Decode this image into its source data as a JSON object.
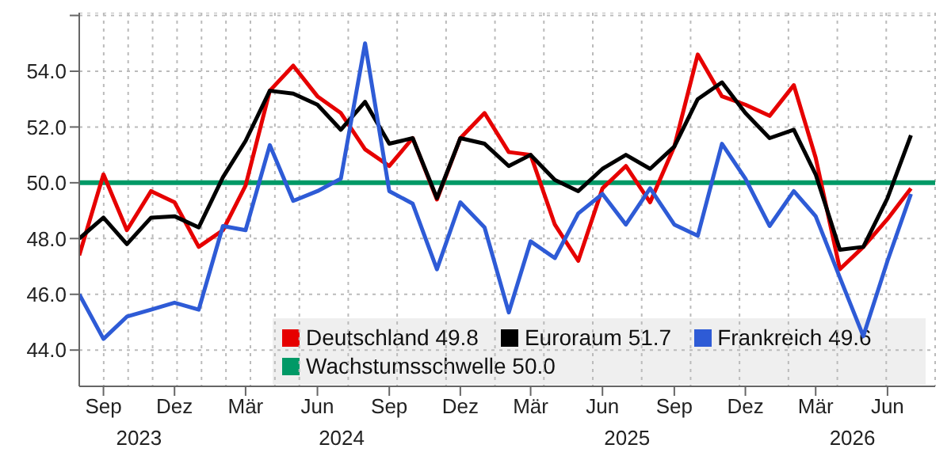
{
  "chart_data": {
    "type": "line",
    "x": [
      "2023-08",
      "2023-09",
      "2023-10",
      "2023-11",
      "2023-12",
      "2024-01",
      "2024-02",
      "2024-03",
      "2024-04",
      "2024-05",
      "2024-06",
      "2024-07",
      "2024-08",
      "2024-09",
      "2024-10",
      "2024-11",
      "2024-12",
      "2025-01",
      "2025-02",
      "2025-03",
      "2025-04",
      "2025-05",
      "2025-06",
      "2025-07",
      "2025-08",
      "2025-09",
      "2025-10",
      "2025-11",
      "2025-12",
      "2026-01",
      "2026-02",
      "2026-03",
      "2026-04",
      "2026-05",
      "2026-06",
      "2026-07"
    ],
    "series": [
      {
        "name": "Deutschland 49.8",
        "color": "#e60000",
        "values": [
          47.4,
          50.3,
          48.3,
          49.7,
          49.3,
          47.7,
          48.3,
          49.9,
          53.3,
          54.2,
          53.1,
          52.5,
          51.2,
          50.6,
          51.6,
          49.4,
          51.6,
          52.5,
          51.1,
          51.0,
          48.5,
          47.2,
          49.8,
          50.6,
          49.3,
          51.3,
          54.6,
          53.1,
          52.8,
          52.4,
          53.5,
          50.9,
          46.9,
          47.7,
          48.7,
          49.8
        ]
      },
      {
        "name": "Euroraum 51.7",
        "color": "#000000",
        "values": [
          48.0,
          48.75,
          47.8,
          48.75,
          48.8,
          48.4,
          50.2,
          51.5,
          53.3,
          53.2,
          52.8,
          51.9,
          52.9,
          51.4,
          51.6,
          49.45,
          51.6,
          51.4,
          50.6,
          51.0,
          50.1,
          49.7,
          50.5,
          51.0,
          50.5,
          51.3,
          53.0,
          53.6,
          52.5,
          51.6,
          51.9,
          50.3,
          47.6,
          47.7,
          49.45,
          51.7
        ]
      },
      {
        "name": "Frankreich 49.6",
        "color": "#2e5bd6",
        "values": [
          46.0,
          44.4,
          45.2,
          45.45,
          45.7,
          45.45,
          48.45,
          48.3,
          51.35,
          49.35,
          49.7,
          50.15,
          55.0,
          49.7,
          49.25,
          46.9,
          49.3,
          48.4,
          45.35,
          47.9,
          47.3,
          48.9,
          49.6,
          48.5,
          49.8,
          48.5,
          48.1,
          51.4,
          50.15,
          48.45,
          49.7,
          48.8,
          46.6,
          44.5,
          47.2,
          49.6
        ]
      }
    ],
    "ref_lines": [
      {
        "axis": "y",
        "value": 50.0,
        "label": "Wachstumsschwelle 50.0",
        "color": "#009966"
      }
    ],
    "xlim": [
      "2023-08",
      "2026-08"
    ],
    "xticks": [
      {
        "value": "2023-09",
        "label": "Sep"
      },
      {
        "value": "2023-12",
        "label": "Dez"
      },
      {
        "value": "2024-03",
        "label": "Mär"
      },
      {
        "value": "2024-06",
        "label": "Jun"
      },
      {
        "value": "2024-09",
        "label": "Sep"
      },
      {
        "value": "2024-12",
        "label": "Dez"
      },
      {
        "value": "2025-03",
        "label": "Mär"
      },
      {
        "value": "2025-06",
        "label": "Jun"
      },
      {
        "value": "2025-09",
        "label": "Sep"
      },
      {
        "value": "2025-12",
        "label": "Dez"
      },
      {
        "value": "2026-03",
        "label": "Mär"
      },
      {
        "value": "2026-06",
        "label": "Jun"
      }
    ],
    "ylim": [
      42.7,
      56.1
    ],
    "yticks": [
      {
        "value": 44,
        "label": "44.0"
      },
      {
        "value": 46,
        "label": "46.0"
      },
      {
        "value": 48,
        "label": "48.0"
      },
      {
        "value": 50,
        "label": "50.0"
      },
      {
        "value": 52,
        "label": "52.0"
      },
      {
        "value": 54,
        "label": "54.0"
      },
      {
        "value": 56,
        "label": null
      }
    ],
    "annotations": [
      "2023",
      "2024",
      "2025",
      "2026"
    ],
    "grid": true,
    "legend": "bottom right"
  }
}
